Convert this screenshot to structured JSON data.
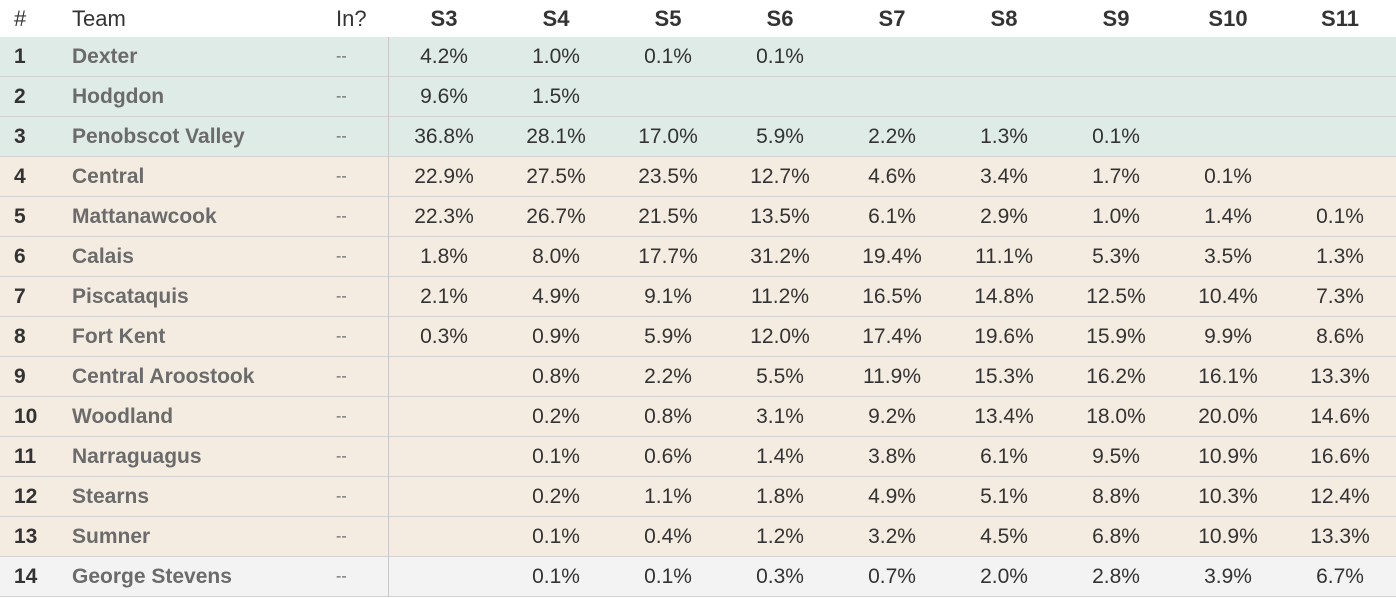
{
  "colors": {
    "top_seed_bg": "#deebe7",
    "mid_bg": "#f5ece1",
    "last_bg": "#f3f3f3",
    "header_bg": "#ffffff",
    "team_text": "#6b6b6b"
  },
  "header": {
    "rank": "#",
    "team": "Team",
    "in": "In?",
    "seeds": [
      "S3",
      "S4",
      "S5",
      "S6",
      "S7",
      "S8",
      "S9",
      "S10",
      "S11"
    ]
  },
  "rows": [
    {
      "rank": "1",
      "team": "Dexter",
      "in": "--",
      "group": "top",
      "vals": [
        "4.2%",
        "1.0%",
        "0.1%",
        "0.1%",
        "",
        "",
        "",
        "",
        ""
      ]
    },
    {
      "rank": "2",
      "team": "Hodgdon",
      "in": "--",
      "group": "top",
      "vals": [
        "9.6%",
        "1.5%",
        "",
        "",
        "",
        "",
        "",
        "",
        ""
      ]
    },
    {
      "rank": "3",
      "team": "Penobscot Valley",
      "in": "--",
      "group": "top",
      "vals": [
        "36.8%",
        "28.1%",
        "17.0%",
        "5.9%",
        "2.2%",
        "1.3%",
        "0.1%",
        "",
        ""
      ]
    },
    {
      "rank": "4",
      "team": "Central",
      "in": "--",
      "group": "mid",
      "vals": [
        "22.9%",
        "27.5%",
        "23.5%",
        "12.7%",
        "4.6%",
        "3.4%",
        "1.7%",
        "0.1%",
        ""
      ]
    },
    {
      "rank": "5",
      "team": "Mattanawcook",
      "in": "--",
      "group": "mid",
      "vals": [
        "22.3%",
        "26.7%",
        "21.5%",
        "13.5%",
        "6.1%",
        "2.9%",
        "1.0%",
        "1.4%",
        "0.1%"
      ]
    },
    {
      "rank": "6",
      "team": "Calais",
      "in": "--",
      "group": "mid",
      "vals": [
        "1.8%",
        "8.0%",
        "17.7%",
        "31.2%",
        "19.4%",
        "11.1%",
        "5.3%",
        "3.5%",
        "1.3%"
      ]
    },
    {
      "rank": "7",
      "team": "Piscataquis",
      "in": "--",
      "group": "mid",
      "vals": [
        "2.1%",
        "4.9%",
        "9.1%",
        "11.2%",
        "16.5%",
        "14.8%",
        "12.5%",
        "10.4%",
        "7.3%"
      ]
    },
    {
      "rank": "8",
      "team": "Fort Kent",
      "in": "--",
      "group": "mid",
      "vals": [
        "0.3%",
        "0.9%",
        "5.9%",
        "12.0%",
        "17.4%",
        "19.6%",
        "15.9%",
        "9.9%",
        "8.6%"
      ]
    },
    {
      "rank": "9",
      "team": "Central Aroostook",
      "in": "--",
      "group": "mid",
      "vals": [
        "",
        "0.8%",
        "2.2%",
        "5.5%",
        "11.9%",
        "15.3%",
        "16.2%",
        "16.1%",
        "13.3%"
      ]
    },
    {
      "rank": "10",
      "team": "Woodland",
      "in": "--",
      "group": "mid",
      "vals": [
        "",
        "0.2%",
        "0.8%",
        "3.1%",
        "9.2%",
        "13.4%",
        "18.0%",
        "20.0%",
        "14.6%"
      ]
    },
    {
      "rank": "11",
      "team": "Narraguagus",
      "in": "--",
      "group": "mid",
      "vals": [
        "",
        "0.1%",
        "0.6%",
        "1.4%",
        "3.8%",
        "6.1%",
        "9.5%",
        "10.9%",
        "16.6%"
      ]
    },
    {
      "rank": "12",
      "team": "Stearns",
      "in": "--",
      "group": "mid",
      "vals": [
        "",
        "0.2%",
        "1.1%",
        "1.8%",
        "4.9%",
        "5.1%",
        "8.8%",
        "10.3%",
        "12.4%"
      ]
    },
    {
      "rank": "13",
      "team": "Sumner",
      "in": "--",
      "group": "mid",
      "vals": [
        "",
        "0.1%",
        "0.4%",
        "1.2%",
        "3.2%",
        "4.5%",
        "6.8%",
        "10.9%",
        "13.3%"
      ]
    },
    {
      "rank": "14",
      "team": "George Stevens",
      "in": "--",
      "group": "last",
      "vals": [
        "",
        "0.1%",
        "0.1%",
        "0.3%",
        "0.7%",
        "2.0%",
        "2.8%",
        "3.9%",
        "6.7%"
      ]
    }
  ]
}
